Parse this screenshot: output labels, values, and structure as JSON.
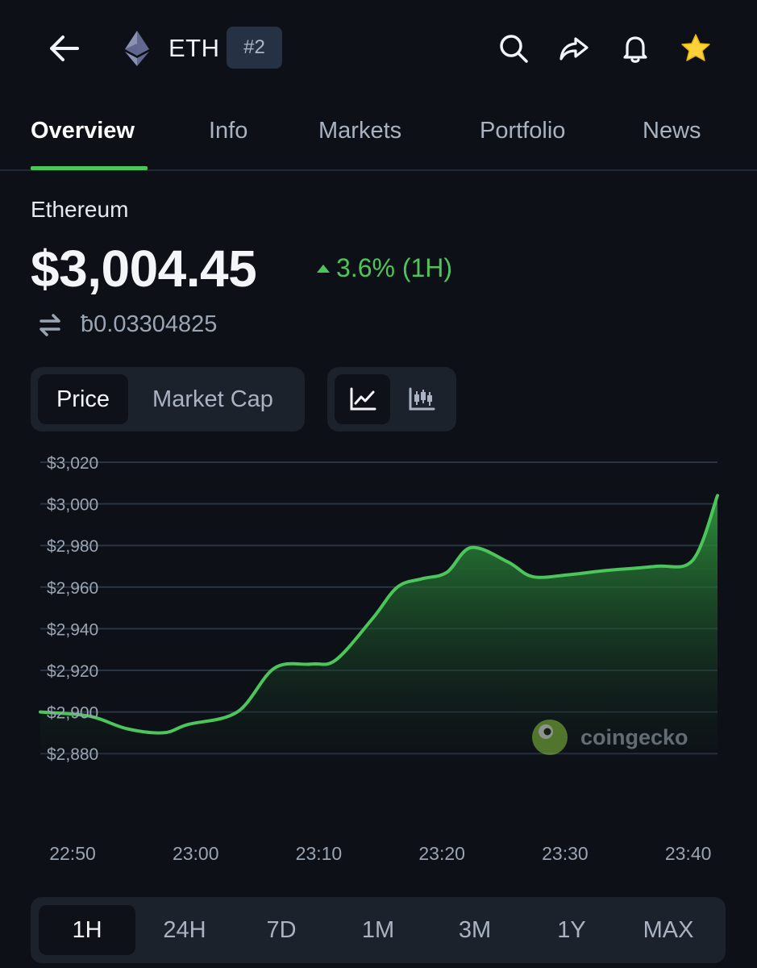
{
  "header": {
    "symbol": "ETH",
    "rank": "#2",
    "icons": [
      "back-arrow-icon",
      "ethereum-logo",
      "search-icon",
      "share-icon",
      "bell-icon",
      "star-icon"
    ],
    "star_color": "#ffd23a"
  },
  "tabs": [
    "Overview",
    "Info",
    "Markets",
    "Portfolio",
    "News"
  ],
  "active_tab": "Overview",
  "coin": {
    "name": "Ethereum",
    "price": "$3,004.45",
    "change": "3.6% (1H)",
    "btc_price": "ƀ0.03304825"
  },
  "toggles": {
    "metric": [
      "Price",
      "Market Cap"
    ],
    "metric_selected": "Price",
    "chart_style_icons": [
      "line-chart-icon",
      "candlestick-icon"
    ],
    "chart_style_selected": "line-chart-icon"
  },
  "chart_data": {
    "type": "area",
    "x": [
      "22:50",
      "22:54",
      "22:57",
      "23:00",
      "23:02",
      "23:06",
      "23:09",
      "23:12",
      "23:14",
      "23:17",
      "23:19",
      "23:21",
      "23:23",
      "23:25",
      "23:28",
      "23:30",
      "23:33",
      "23:36",
      "23:40",
      "23:43",
      "23:45"
    ],
    "values": [
      2900,
      2898,
      2892,
      2890,
      2894,
      2900,
      2921,
      2923,
      2925,
      2945,
      2960,
      2964,
      2967,
      2979,
      2972,
      2965,
      2966,
      2968,
      2970,
      2973,
      3004
    ],
    "ylim": [
      2870,
      3020
    ],
    "y_ticks": [
      "$3,020",
      "$3,000",
      "$2,980",
      "$2,960",
      "$2,940",
      "$2,920",
      "$2,900",
      "$2,880"
    ],
    "x_ticks": [
      "22:50",
      "23:00",
      "23:10",
      "23:20",
      "23:30",
      "23:40"
    ],
    "line_color": "#4cc65a",
    "grid": true,
    "watermark": "coingecko"
  },
  "ranges": [
    "1H",
    "24H",
    "7D",
    "1M",
    "3M",
    "1Y",
    "MAX"
  ],
  "range_selected": "1H"
}
